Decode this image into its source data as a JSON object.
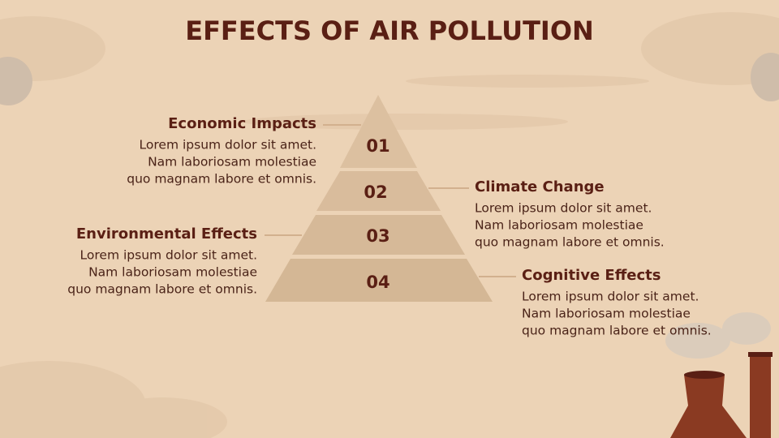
{
  "title": "EFFECTS OF AIR POLLUTION",
  "levels": [
    {
      "number": "01",
      "heading": "Economic Impacts",
      "body": [
        "Lorem ipsum dolor sit amet.",
        "Nam laboriosam molestiae",
        "quo magnam labore et omnis."
      ]
    },
    {
      "number": "02",
      "heading": "Climate Change",
      "body": [
        "Lorem ipsum dolor sit amet.",
        "Nam laboriosam molestiae",
        "quo magnam labore et omnis."
      ]
    },
    {
      "number": "03",
      "heading": "Environmental Effects",
      "body": [
        "Lorem ipsum dolor sit amet.",
        "Nam laboriosam molestiae",
        "quo magnam labore et omnis."
      ]
    },
    {
      "number": "04",
      "heading": "Cognitive Effects",
      "body": [
        "Lorem ipsum dolor sit amet.",
        "Nam laboriosam molestiae",
        "quo magnam labore et omnis."
      ]
    }
  ]
}
